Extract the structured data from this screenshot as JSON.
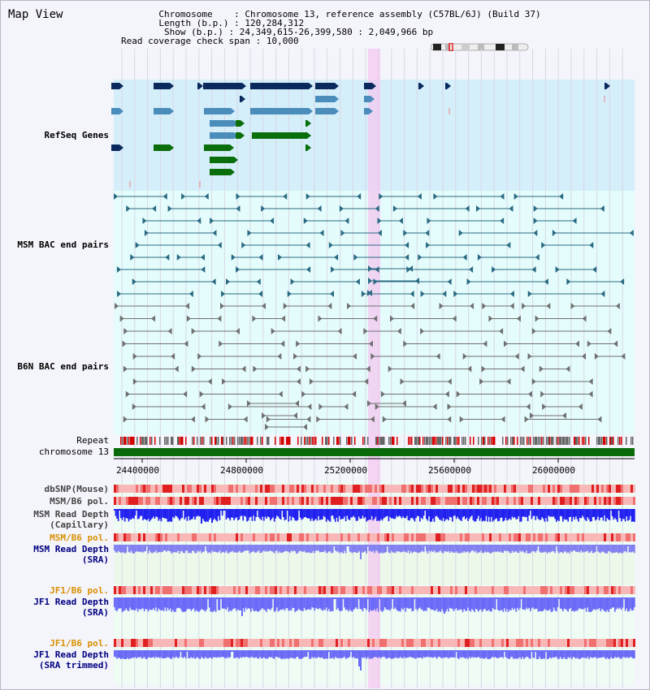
{
  "view_title": "Map View",
  "info": {
    "chromosome_key": "Chromosome",
    "chromosome_val": "Chromosome 13, reference assembly (C57BL/6J) (Build 37)",
    "length_key": "Length (b.p.)",
    "length_val": "120,284,312",
    "show_key": "Show (b.p.)",
    "show_val": "24,349,615-26,399,580 : 2,049,966 bp",
    "coverage_key": "Read coverage check span",
    "coverage_val": "10,000"
  },
  "tracks": {
    "refseq_label": "RefSeq Genes",
    "msm_bac_label": "MSM BAC end pairs",
    "b6n_bac_label": "B6N BAC end pairs",
    "repeat_label": "Repeat",
    "chromosome_label": "chromosome 13",
    "dbsnp_label": "dbSNP(Mouse)",
    "msm_b6_pol_label": "MSM/B6 pol.",
    "msm_depth_cap_label": "MSM Read Depth\n(Capillary)",
    "msm_b6_pol2_label": "MSM/B6 pol.",
    "msm_depth_sra_label": "MSM Read Depth\n(SRA)",
    "jf1_b6_pol_label": "JF1/B6 pol.",
    "jf1_depth_sra_label": "JF1 Read Depth\n(SRA)",
    "jf1_b6_pol2_label": "JF1/B6 pol.",
    "jf1_depth_trim_label": "JF1 Read Depth\n(SRA trimmed)"
  },
  "axis_ticks": [
    "24400000",
    "24800000",
    "25200000",
    "25600000",
    "26000000"
  ],
  "colors": {
    "refseq_bg": "#d4eefa",
    "bac_bg": "#e4fcfc",
    "gene_dark": "#0a2a5e",
    "gene_mid": "#4a8cba",
    "gene_green": "#0a6e0a",
    "msm_pair": "#2a6a82",
    "b6n_pair": "#707070",
    "chromosome_bar": "#0a6a0a",
    "highlight": "#f4c8f0",
    "label_blue": "#000080",
    "label_teal": "#006070",
    "label_orange": "#d89000"
  }
}
